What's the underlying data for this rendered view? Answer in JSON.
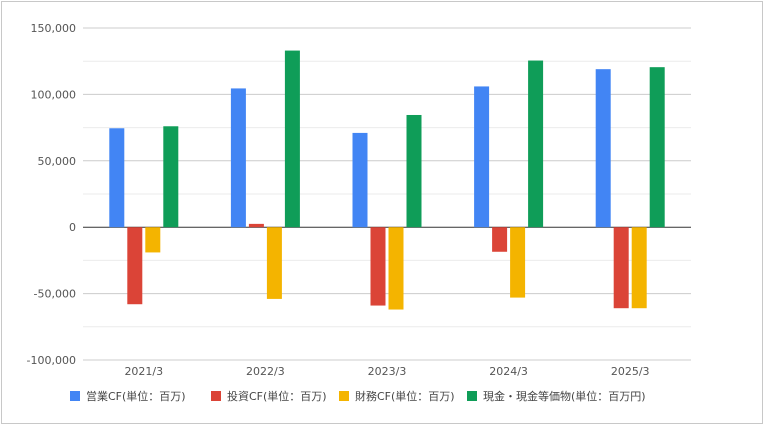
{
  "chart_data": {
    "type": "bar",
    "categories": [
      "2021/3",
      "2022/3",
      "2023/3",
      "2024/3",
      "2025/3"
    ],
    "series": [
      {
        "name": "営業CF(単位：百万)",
        "color": "#4285f4",
        "values": [
          74500,
          104500,
          71000,
          106000,
          119000
        ]
      },
      {
        "name": "投資CF(単位：百万)",
        "color": "#db4437",
        "values": [
          -58000,
          2500,
          -59000,
          -18500,
          -61000
        ]
      },
      {
        "name": "財務CF(単位：百万)",
        "color": "#f4b400",
        "values": [
          -19000,
          -54000,
          -62000,
          -53000,
          -61000
        ]
      },
      {
        "name": "現金・現金等価物(単位：百万円)",
        "color": "#0f9d58",
        "values": [
          76000,
          133000,
          84500,
          125500,
          120500
        ]
      }
    ],
    "y_ticks": [
      "150,000",
      "100,000",
      "50,000",
      "0",
      "-50,000",
      "-100,000"
    ],
    "y_tick_values": [
      150000,
      100000,
      50000,
      0,
      -50000,
      -100000
    ],
    "ylim": [
      -100000,
      150000
    ],
    "minor_gridlines": true,
    "legend_position": "bottom",
    "title": "",
    "xlabel": "",
    "ylabel": ""
  }
}
